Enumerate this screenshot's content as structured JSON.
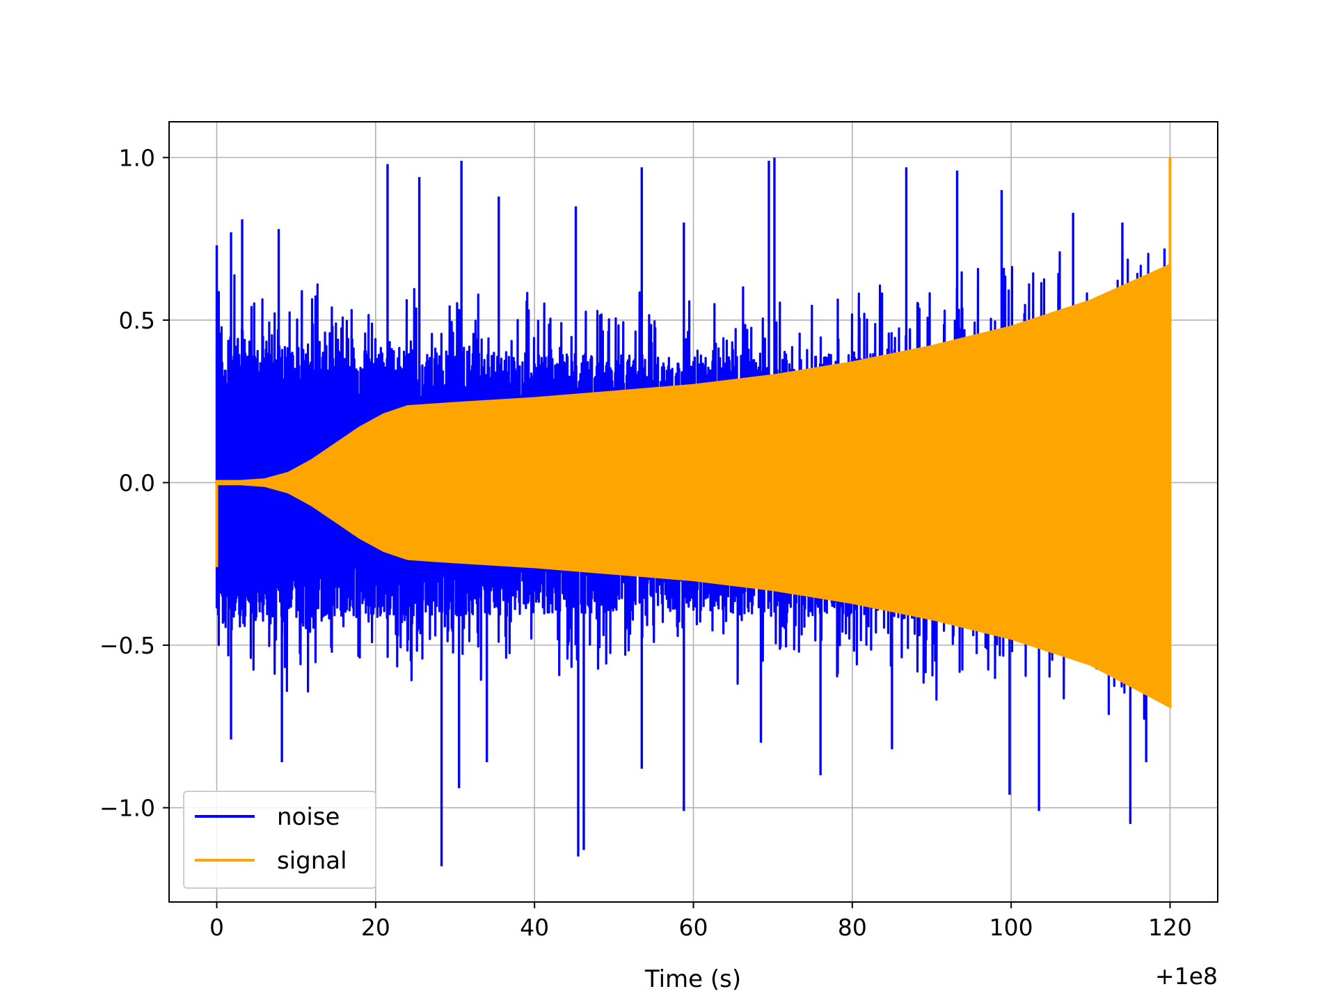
{
  "chart_data": {
    "type": "line",
    "title": "",
    "xlabel": "Time (s)",
    "ylabel": "",
    "x_offset_label": "+1e8",
    "xlim": [
      -6,
      126
    ],
    "ylim": [
      -1.29,
      1.11
    ],
    "xticks": [
      0,
      20,
      40,
      60,
      80,
      100,
      120
    ],
    "xtick_labels": [
      "0",
      "20",
      "40",
      "60",
      "80",
      "100",
      "120"
    ],
    "yticks": [
      -1.0,
      -0.5,
      0.0,
      0.5,
      1.0
    ],
    "ytick_labels": [
      "−1.0",
      "−0.5",
      "0.0",
      "0.5",
      "1.0"
    ],
    "grid": true,
    "legend_position": "lower-left",
    "series": [
      {
        "name": "noise",
        "color": "#0000ff",
        "x_range": [
          0,
          120
        ],
        "envelope": {
          "x": [
            0,
            5,
            10,
            15,
            20,
            25,
            30,
            40,
            50,
            60,
            70,
            80,
            90,
            100,
            110,
            120
          ],
          "upper": [
            0.48,
            0.44,
            0.43,
            0.42,
            0.42,
            0.42,
            0.41,
            0.4,
            0.4,
            0.39,
            0.39,
            0.4,
            0.42,
            0.45,
            0.47,
            0.5
          ],
          "lower": [
            -0.46,
            -0.44,
            -0.43,
            -0.43,
            -0.42,
            -0.42,
            -0.41,
            -0.41,
            -0.4,
            -0.4,
            -0.41,
            -0.41,
            -0.43,
            -0.45,
            -0.48,
            -0.5
          ]
        },
        "peaks": [
          {
            "x": 0,
            "y": 0.73
          },
          {
            "x": 1.8,
            "y": 0.77
          },
          {
            "x": 3.2,
            "y": 0.81
          },
          {
            "x": 7.8,
            "y": 0.78
          },
          {
            "x": 21.5,
            "y": 0.98
          },
          {
            "x": 25.5,
            "y": 0.94
          },
          {
            "x": 30.8,
            "y": 0.99
          },
          {
            "x": 35.5,
            "y": 0.88
          },
          {
            "x": 45.2,
            "y": 0.85
          },
          {
            "x": 53.5,
            "y": 0.97
          },
          {
            "x": 58.8,
            "y": 0.8
          },
          {
            "x": 69.5,
            "y": 0.99
          },
          {
            "x": 70.2,
            "y": 1.0
          },
          {
            "x": 86.8,
            "y": 0.97
          },
          {
            "x": 93.2,
            "y": 0.96
          },
          {
            "x": 98.8,
            "y": 0.9
          },
          {
            "x": 107.8,
            "y": 0.83
          },
          {
            "x": 114.0,
            "y": 0.8
          },
          {
            "x": 119.3,
            "y": 0.72
          },
          {
            "x": 1.8,
            "y": -0.79
          },
          {
            "x": 8.2,
            "y": -0.86
          },
          {
            "x": 28.3,
            "y": -1.18
          },
          {
            "x": 30.5,
            "y": -0.94
          },
          {
            "x": 34.0,
            "y": -0.86
          },
          {
            "x": 45.5,
            "y": -1.15
          },
          {
            "x": 46.2,
            "y": -1.13
          },
          {
            "x": 53.5,
            "y": -0.88
          },
          {
            "x": 58.8,
            "y": -1.01
          },
          {
            "x": 68.5,
            "y": -0.8
          },
          {
            "x": 76.0,
            "y": -0.9
          },
          {
            "x": 85.0,
            "y": -0.82
          },
          {
            "x": 99.8,
            "y": -0.96
          },
          {
            "x": 103.5,
            "y": -1.01
          },
          {
            "x": 115.0,
            "y": -1.05
          },
          {
            "x": 117.0,
            "y": -0.86
          }
        ]
      },
      {
        "name": "signal",
        "color": "#ffa500",
        "x_range": [
          0,
          120
        ],
        "envelope": {
          "x": [
            0,
            3,
            6,
            9,
            12,
            15,
            18,
            21,
            24,
            27,
            30,
            40,
            50,
            60,
            70,
            80,
            90,
            100,
            110,
            120
          ],
          "upper": [
            0.005,
            0.005,
            0.01,
            0.03,
            0.07,
            0.12,
            0.17,
            0.21,
            0.235,
            0.24,
            0.245,
            0.26,
            0.28,
            0.3,
            0.33,
            0.37,
            0.42,
            0.48,
            0.56,
            0.67
          ],
          "lower": [
            -0.005,
            -0.005,
            -0.01,
            -0.03,
            -0.07,
            -0.12,
            -0.17,
            -0.21,
            -0.235,
            -0.24,
            -0.245,
            -0.26,
            -0.28,
            -0.3,
            -0.33,
            -0.37,
            -0.42,
            -0.48,
            -0.56,
            -0.69
          ]
        },
        "start_spike": {
          "x": 0,
          "y": -0.26
        },
        "end_spike": {
          "x": 120,
          "y": 1.0,
          "y_min": -0.69
        }
      }
    ]
  }
}
